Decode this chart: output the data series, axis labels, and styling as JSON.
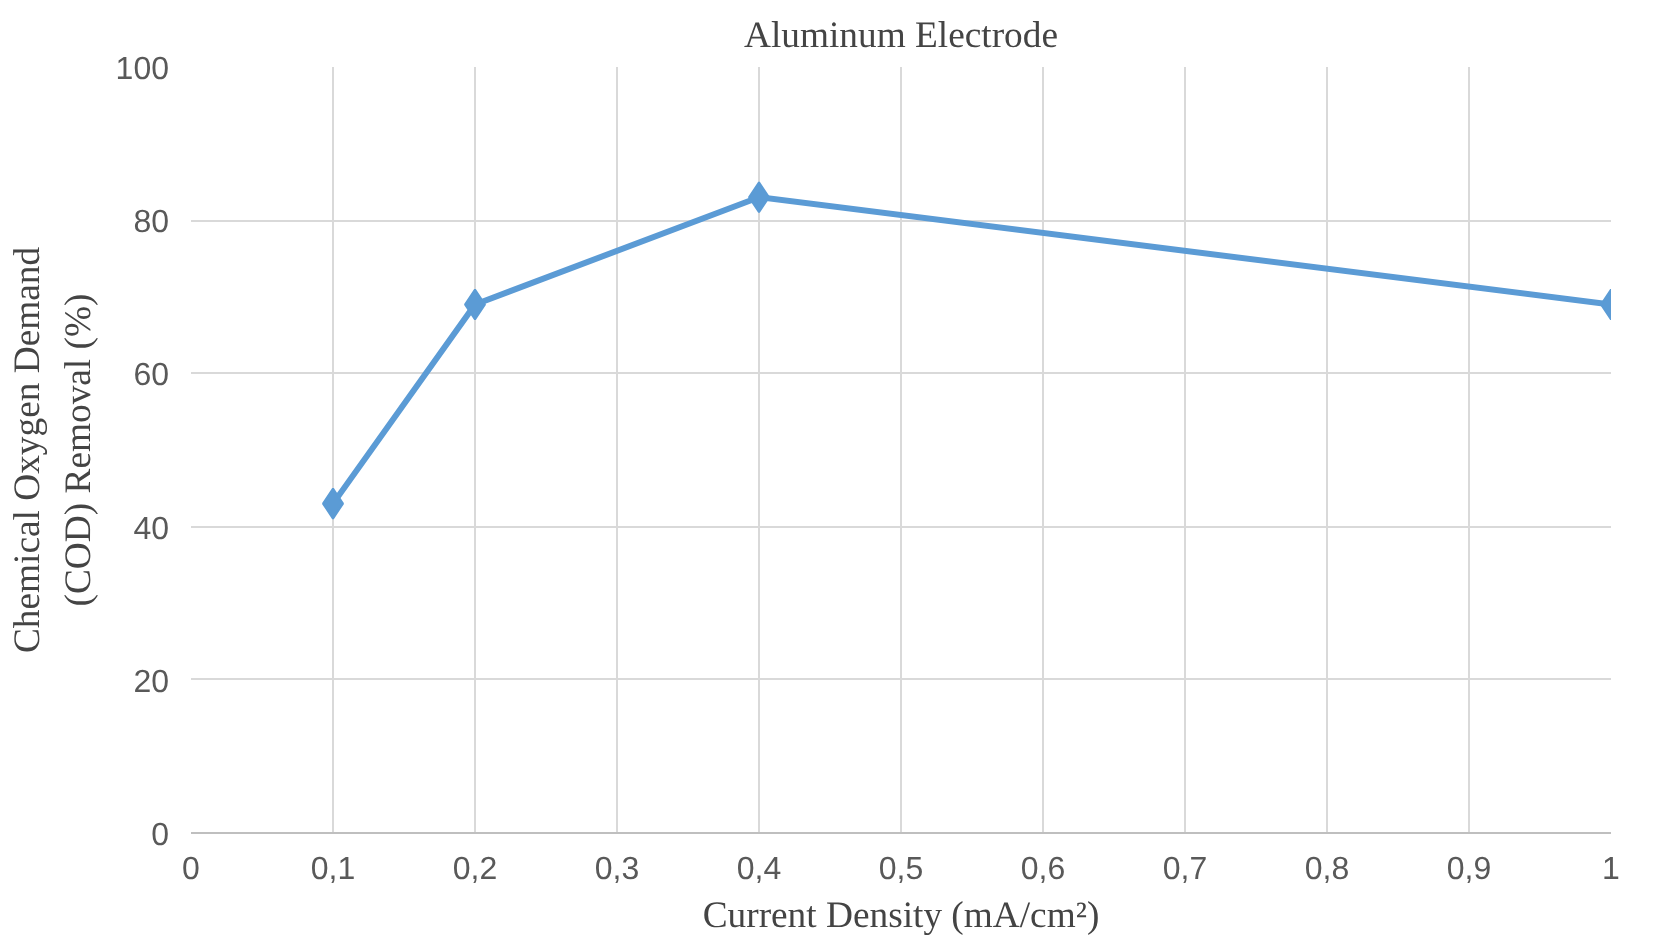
{
  "chart_data": {
    "type": "line",
    "title": "Aluminum Electrode",
    "xlabel": "Current Density (mA/cm²)",
    "ylabel": "Chemical Oxygen Demand\n(COD) Removal (%)",
    "x": [
      0.1,
      0.2,
      0.4,
      1
    ],
    "series": [
      {
        "color": "#5b9bd5",
        "values": [
          43,
          69,
          83,
          69
        ]
      }
    ],
    "xlim": [
      0,
      1
    ],
    "ylim": [
      0,
      100
    ],
    "xticks": [
      0,
      {
        "value": 0.1,
        "label": "0,1"
      },
      {
        "value": 0.2,
        "label": "0,2"
      },
      {
        "value": 0.3,
        "label": "0,3"
      },
      {
        "value": 0.4,
        "label": "0,4"
      },
      {
        "value": 0.5,
        "label": "0,5"
      },
      {
        "value": 0.6,
        "label": "0,6"
      },
      {
        "value": 0.7,
        "label": "0,7"
      },
      {
        "value": 0.8,
        "label": "0,8"
      },
      {
        "value": 0.9,
        "label": "0,9"
      },
      1
    ],
    "yticks": [
      0,
      20,
      40,
      60,
      80,
      100
    ],
    "grid": true,
    "marker": "diamond",
    "line_style": "solid"
  }
}
